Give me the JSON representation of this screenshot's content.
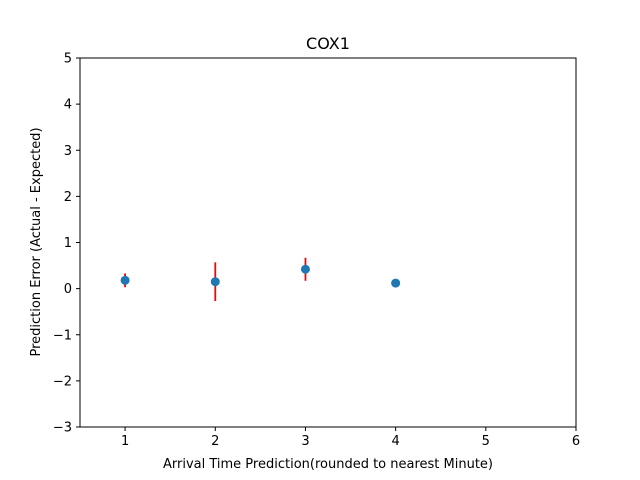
{
  "chart_data": {
    "type": "scatter",
    "title": "COX1",
    "xlabel": "Arrival Time Prediction(rounded to nearest Minute)",
    "ylabel": "Prediction Error (Actual - Expected)",
    "xlim": [
      0.5,
      6
    ],
    "ylim": [
      -3,
      5
    ],
    "x_ticks": [
      1,
      2,
      3,
      4,
      5,
      6
    ],
    "y_ticks": [
      -3,
      -2,
      -1,
      0,
      1,
      2,
      3,
      4,
      5
    ],
    "grid": false,
    "legend": "none",
    "series": [
      {
        "x": [
          1,
          2,
          3,
          4
        ],
        "y": [
          0.18,
          0.15,
          0.42,
          0.12
        ],
        "yerr": [
          0.15,
          0.42,
          0.25,
          0.0
        ],
        "marker_color": "#1f77b4",
        "errorbar_color": "#ff0000"
      }
    ]
  }
}
